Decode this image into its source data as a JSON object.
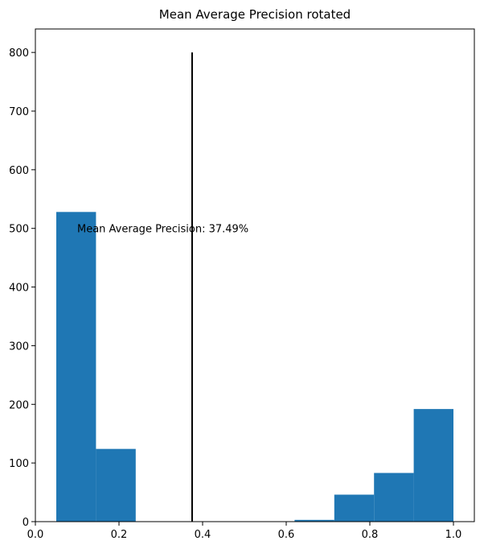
{
  "chart_data": {
    "type": "bar",
    "title": "Mean Average Precision rotated",
    "xlabel": "",
    "ylabel": "",
    "xlim": [
      0.0,
      1.05
    ],
    "ylim": [
      0,
      840
    ],
    "grid": false,
    "bar_color": "#1f77b4",
    "bins": [
      {
        "x0": 0.05,
        "x1": 0.145,
        "count": 528
      },
      {
        "x0": 0.145,
        "x1": 0.24,
        "count": 124
      },
      {
        "x0": 0.24,
        "x1": 0.335,
        "count": 0
      },
      {
        "x0": 0.335,
        "x1": 0.43,
        "count": 0
      },
      {
        "x0": 0.43,
        "x1": 0.525,
        "count": 0
      },
      {
        "x0": 0.525,
        "x1": 0.62,
        "count": 0
      },
      {
        "x0": 0.62,
        "x1": 0.715,
        "count": 3
      },
      {
        "x0": 0.715,
        "x1": 0.81,
        "count": 46
      },
      {
        "x0": 0.81,
        "x1": 0.905,
        "count": 83
      },
      {
        "x0": 0.905,
        "x1": 1.0,
        "count": 192
      }
    ],
    "mean_line": {
      "x": 0.3749,
      "y0": 0,
      "y1": 800,
      "color": "#000000"
    },
    "annotation": {
      "text": "Mean Average Precision: 37.49%",
      "x": 0.1,
      "y": 500
    },
    "x_ticks": [
      {
        "value": 0.0,
        "label": "0.0"
      },
      {
        "value": 0.2,
        "label": "0.2"
      },
      {
        "value": 0.4,
        "label": "0.4"
      },
      {
        "value": 0.6,
        "label": "0.6"
      },
      {
        "value": 0.8,
        "label": "0.8"
      },
      {
        "value": 1.0,
        "label": "1.0"
      }
    ],
    "y_ticks": [
      {
        "value": 0,
        "label": "0"
      },
      {
        "value": 100,
        "label": "100"
      },
      {
        "value": 200,
        "label": "200"
      },
      {
        "value": 300,
        "label": "300"
      },
      {
        "value": 400,
        "label": "400"
      },
      {
        "value": 500,
        "label": "500"
      },
      {
        "value": 600,
        "label": "600"
      },
      {
        "value": 700,
        "label": "700"
      },
      {
        "value": 800,
        "label": "800"
      }
    ]
  }
}
